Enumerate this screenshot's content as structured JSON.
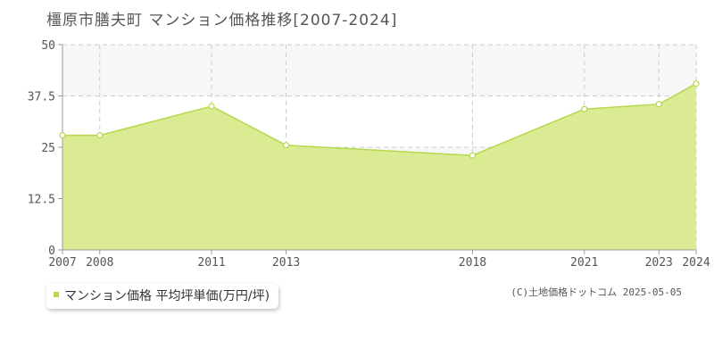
{
  "chart_data": {
    "type": "area",
    "title": "橿原市膳夫町 マンション価格推移[2007-2024]",
    "categories": [
      "2007",
      "2008",
      "2011",
      "2013",
      "2018",
      "2021",
      "2023",
      "2024"
    ],
    "series": [
      {
        "name": "マンション価格 平均坪単価(万円/坪)",
        "values": [
          27.9,
          27.9,
          35.0,
          25.5,
          23.0,
          34.3,
          35.5,
          40.5
        ]
      }
    ],
    "yticks": [
      "0",
      "12.5",
      "25",
      "37.5",
      "50"
    ],
    "ylim": [
      0,
      50
    ],
    "xlabel": "",
    "ylabel": "",
    "grid": true,
    "legend_position": "bottom-left",
    "colors": {
      "fill": "#dbeb93",
      "line": "#b5d94a",
      "point_fill": "#ffffff",
      "grid": "#cccccc",
      "axis": "#999999",
      "legend_marker": "#b5d94a",
      "band": "#f7f7f9"
    }
  },
  "credit": "(C)土地価格ドットコム 2025-05-05"
}
